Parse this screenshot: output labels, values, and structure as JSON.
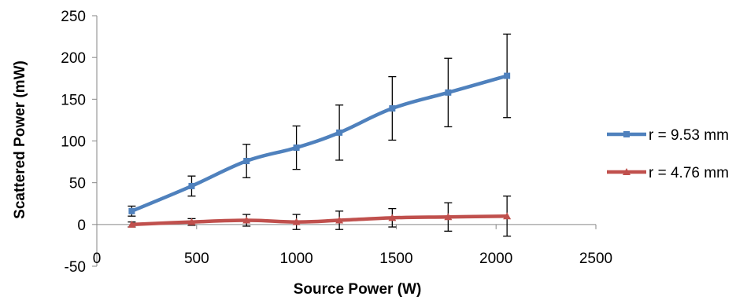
{
  "chart_data": {
    "type": "line",
    "title": "",
    "xlabel": "Source Power (W)",
    "ylabel": "Scattered Power (mW)",
    "xlim": [
      0,
      2500
    ],
    "ylim": [
      -50,
      250
    ],
    "x_ticks": [
      0,
      500,
      1000,
      1500,
      2000,
      2500
    ],
    "y_ticks": [
      -50,
      0,
      50,
      100,
      150,
      200,
      250
    ],
    "x_tick_labels": [
      "0",
      "500",
      "1000",
      "1500",
      "2000",
      "2500"
    ],
    "y_tick_labels": [
      "-50",
      "0",
      "50",
      "100",
      "150",
      "200",
      "250"
    ],
    "grid": false,
    "legend_position": "right",
    "series": [
      {
        "name": "r = 9.53 mm",
        "color": "#4F81BD",
        "marker": "square",
        "x": [
          175,
          475,
          750,
          1000,
          1215,
          1480,
          1760,
          2055
        ],
        "y": [
          16,
          46,
          76,
          92,
          110,
          139,
          158,
          178
        ],
        "error": [
          6,
          12,
          20,
          26,
          33,
          38,
          41,
          50
        ]
      },
      {
        "name": "r = 4.76 mm",
        "color": "#C0504D",
        "marker": "triangle",
        "x": [
          175,
          475,
          750,
          1000,
          1215,
          1480,
          1760,
          2055
        ],
        "y": [
          0,
          3,
          5,
          3,
          5,
          8,
          9,
          10
        ],
        "error": [
          3,
          4,
          7,
          9,
          11,
          11,
          17,
          24
        ]
      }
    ]
  }
}
